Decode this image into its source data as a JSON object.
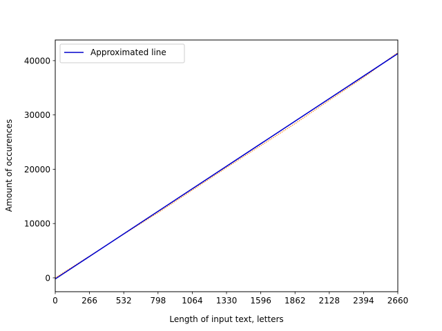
{
  "chart_data": {
    "type": "line",
    "xlabel": "Length of input text, letters",
    "ylabel": "Amount of occurences",
    "xlim": [
      0,
      2660
    ],
    "ylim": [
      -2550,
      43800
    ],
    "xticks": [
      0,
      266,
      532,
      798,
      1064,
      1330,
      1596,
      1862,
      2128,
      2394,
      2660
    ],
    "yticks": [
      0,
      10000,
      20000,
      30000,
      40000
    ],
    "grid": false,
    "legend_position": "upper-left",
    "series": [
      {
        "name": "",
        "color": "#ff7f0e",
        "style": "dotted",
        "x": [
          0,
          266,
          532,
          798,
          1064,
          1330,
          1596,
          1862,
          2128,
          2394,
          2660
        ],
        "y": [
          0,
          4000,
          8050,
          12000,
          16150,
          20300,
          24350,
          28400,
          32700,
          36900,
          41500
        ]
      },
      {
        "name": "Approximated line",
        "color": "#0000cc",
        "style": "solid",
        "x": [
          0,
          2660
        ],
        "y": [
          -200,
          41300
        ]
      }
    ]
  }
}
